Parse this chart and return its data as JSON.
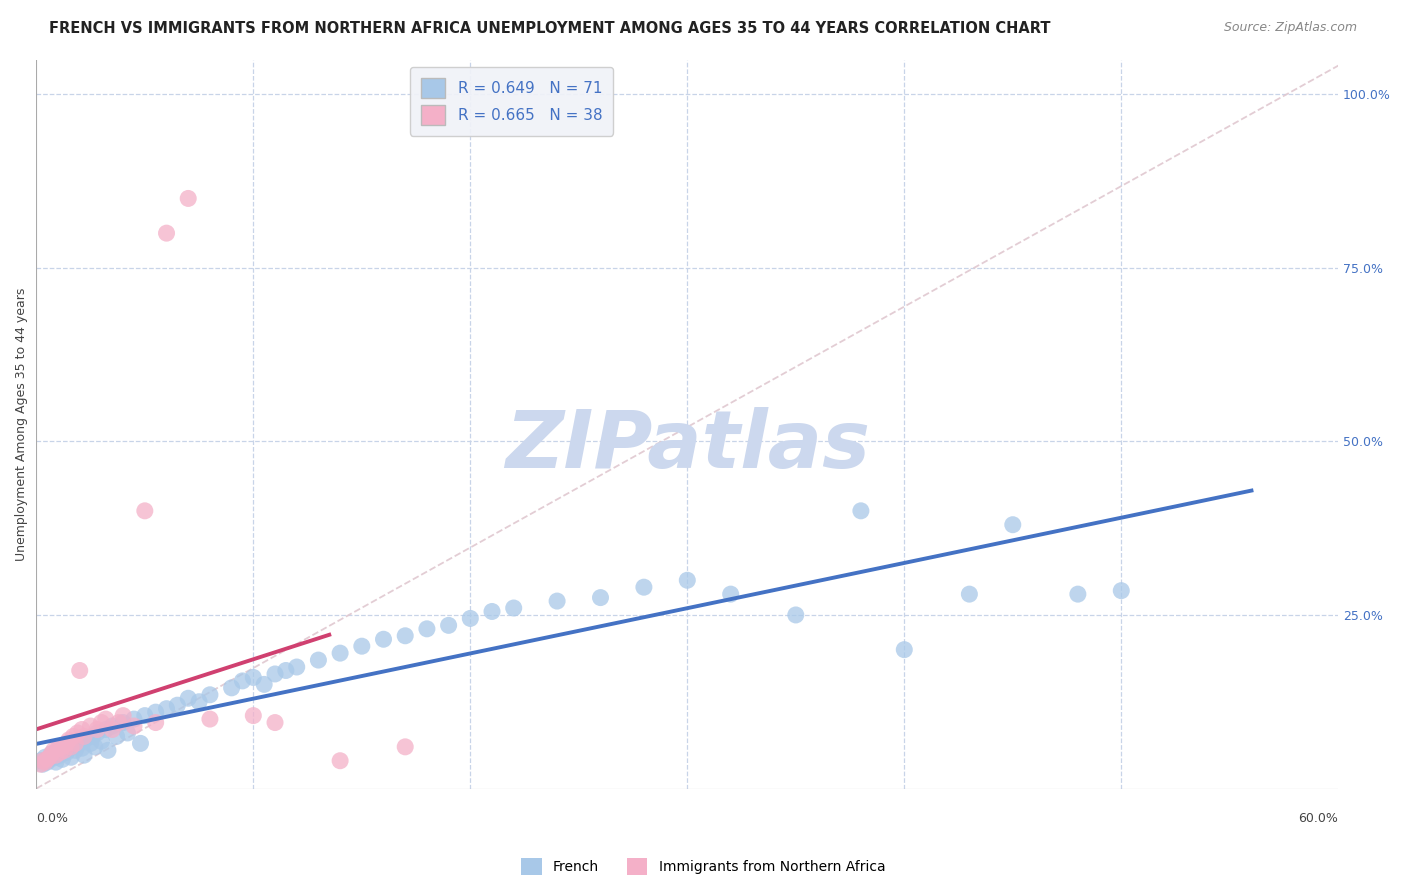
{
  "title": "FRENCH VS IMMIGRANTS FROM NORTHERN AFRICA UNEMPLOYMENT AMONG AGES 35 TO 44 YEARS CORRELATION CHART",
  "source": "Source: ZipAtlas.com",
  "ylabel": "Unemployment Among Ages 35 to 44 years",
  "french_R": 0.649,
  "french_N": 71,
  "immigrant_R": 0.665,
  "immigrant_N": 38,
  "french_color": "#a8c8e8",
  "french_line_color": "#4472c4",
  "immigrant_color": "#f4b0c8",
  "immigrant_line_color": "#d04070",
  "diag_line_color": "#e0c8d0",
  "background_color": "#ffffff",
  "grid_color": "#c8d4e8",
  "watermark_color": "#ccd8ee",
  "legend_box_color": "#f0f2f8",
  "right_tick_color": "#4472c4",
  "right_ytick_vals": [
    0.0,
    0.25,
    0.5,
    0.75,
    1.0
  ],
  "right_ytick_labels": [
    "",
    "25.0%",
    "50.0%",
    "75.0%",
    "100.0%"
  ],
  "xlim": [
    0.0,
    0.6
  ],
  "ylim": [
    0.0,
    1.05
  ],
  "french_x": [
    0.002,
    0.003,
    0.004,
    0.005,
    0.006,
    0.007,
    0.008,
    0.009,
    0.01,
    0.011,
    0.012,
    0.013,
    0.014,
    0.015,
    0.016,
    0.017,
    0.018,
    0.019,
    0.02,
    0.021,
    0.022,
    0.023,
    0.025,
    0.026,
    0.027,
    0.028,
    0.03,
    0.032,
    0.033,
    0.035,
    0.037,
    0.04,
    0.042,
    0.045,
    0.048,
    0.05,
    0.055,
    0.06,
    0.065,
    0.07,
    0.075,
    0.08,
    0.09,
    0.095,
    0.1,
    0.105,
    0.11,
    0.115,
    0.12,
    0.13,
    0.14,
    0.15,
    0.16,
    0.17,
    0.18,
    0.19,
    0.2,
    0.21,
    0.22,
    0.24,
    0.26,
    0.28,
    0.3,
    0.32,
    0.35,
    0.38,
    0.4,
    0.43,
    0.45,
    0.48,
    0.5
  ],
  "french_y": [
    0.04,
    0.035,
    0.045,
    0.038,
    0.042,
    0.05,
    0.044,
    0.038,
    0.055,
    0.048,
    0.042,
    0.06,
    0.052,
    0.058,
    0.045,
    0.065,
    0.055,
    0.062,
    0.07,
    0.058,
    0.048,
    0.072,
    0.065,
    0.075,
    0.06,
    0.08,
    0.068,
    0.085,
    0.055,
    0.09,
    0.075,
    0.095,
    0.08,
    0.1,
    0.065,
    0.105,
    0.11,
    0.115,
    0.12,
    0.13,
    0.125,
    0.135,
    0.145,
    0.155,
    0.16,
    0.15,
    0.165,
    0.17,
    0.175,
    0.185,
    0.195,
    0.205,
    0.215,
    0.22,
    0.23,
    0.235,
    0.245,
    0.255,
    0.26,
    0.27,
    0.275,
    0.29,
    0.3,
    0.28,
    0.25,
    0.4,
    0.2,
    0.28,
    0.38,
    0.28,
    0.285
  ],
  "immigrant_x": [
    0.002,
    0.003,
    0.004,
    0.005,
    0.006,
    0.007,
    0.008,
    0.009,
    0.01,
    0.011,
    0.012,
    0.013,
    0.014,
    0.015,
    0.016,
    0.017,
    0.018,
    0.019,
    0.02,
    0.021,
    0.022,
    0.025,
    0.028,
    0.03,
    0.032,
    0.035,
    0.038,
    0.04,
    0.045,
    0.05,
    0.055,
    0.06,
    0.07,
    0.08,
    0.1,
    0.11,
    0.14,
    0.17
  ],
  "immigrant_y": [
    0.035,
    0.04,
    0.038,
    0.042,
    0.045,
    0.05,
    0.055,
    0.048,
    0.058,
    0.052,
    0.06,
    0.055,
    0.065,
    0.07,
    0.06,
    0.075,
    0.065,
    0.08,
    0.17,
    0.085,
    0.075,
    0.09,
    0.085,
    0.095,
    0.1,
    0.085,
    0.095,
    0.105,
    0.09,
    0.4,
    0.095,
    0.8,
    0.85,
    0.1,
    0.105,
    0.095,
    0.04,
    0.06
  ],
  "title_fontsize": 10.5,
  "source_fontsize": 9,
  "axis_label_fontsize": 9,
  "legend_fontsize": 11
}
